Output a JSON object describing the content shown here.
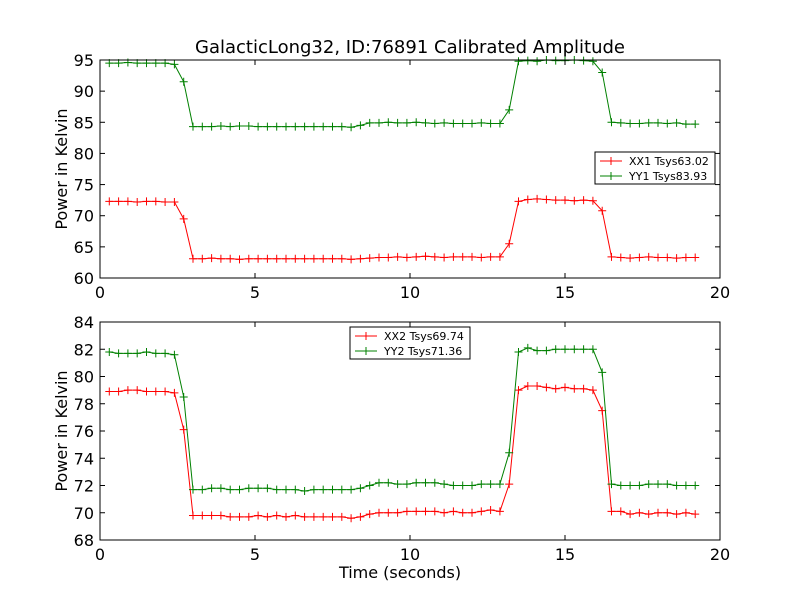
{
  "chart_data": [
    {
      "type": "line",
      "title": "GalacticLong32, ID:76891 Calibrated Amplitude",
      "xlabel": "",
      "ylabel": "Power in Kelvin",
      "xlim": [
        0,
        20
      ],
      "ylim": [
        60,
        95
      ],
      "xticks": [
        "0",
        "5",
        "10",
        "15",
        "20"
      ],
      "yticks": [
        "60",
        "65",
        "70",
        "75",
        "80",
        "85",
        "90",
        "95"
      ],
      "grid": false,
      "legend_position": "center-right",
      "x": [
        0.3,
        0.6,
        0.9,
        1.2,
        1.5,
        1.8,
        2.1,
        2.4,
        2.7,
        3.0,
        3.3,
        3.6,
        3.9,
        4.2,
        4.5,
        4.8,
        5.1,
        5.4,
        5.7,
        6.0,
        6.3,
        6.6,
        6.9,
        7.2,
        7.5,
        7.8,
        8.1,
        8.4,
        8.7,
        9.0,
        9.3,
        9.6,
        9.9,
        10.2,
        10.5,
        10.8,
        11.1,
        11.4,
        11.7,
        12.0,
        12.3,
        12.6,
        12.9,
        13.2,
        13.5,
        13.8,
        14.1,
        14.4,
        14.7,
        15.0,
        15.3,
        15.6,
        15.9,
        16.2,
        16.5,
        16.8,
        17.1,
        17.4,
        17.7,
        18.0,
        18.3,
        18.6,
        18.9,
        19.2
      ],
      "series": [
        {
          "name": "XX1 Tsys63.02",
          "color": "#ff0000",
          "values": [
            72.3,
            72.3,
            72.3,
            72.2,
            72.3,
            72.3,
            72.2,
            72.2,
            69.5,
            63.1,
            63.1,
            63.2,
            63.1,
            63.1,
            63.0,
            63.1,
            63.1,
            63.1,
            63.1,
            63.1,
            63.1,
            63.1,
            63.1,
            63.1,
            63.1,
            63.1,
            63.0,
            63.1,
            63.2,
            63.3,
            63.3,
            63.4,
            63.3,
            63.4,
            63.5,
            63.4,
            63.3,
            63.4,
            63.4,
            63.4,
            63.3,
            63.4,
            63.4,
            65.5,
            72.3,
            72.6,
            72.7,
            72.6,
            72.5,
            72.5,
            72.4,
            72.5,
            72.4,
            70.8,
            63.4,
            63.3,
            63.2,
            63.3,
            63.4,
            63.3,
            63.3,
            63.2,
            63.3,
            63.3
          ]
        },
        {
          "name": "YY1 Tsys83.93",
          "color": "#008000",
          "values": [
            94.5,
            94.5,
            94.6,
            94.5,
            94.5,
            94.5,
            94.5,
            94.3,
            91.5,
            84.3,
            84.3,
            84.3,
            84.4,
            84.3,
            84.4,
            84.4,
            84.3,
            84.3,
            84.3,
            84.3,
            84.3,
            84.3,
            84.3,
            84.3,
            84.3,
            84.3,
            84.2,
            84.5,
            84.9,
            84.9,
            85.0,
            84.9,
            84.9,
            85.0,
            84.9,
            84.8,
            84.9,
            84.8,
            84.8,
            84.8,
            84.9,
            84.8,
            84.8,
            87.0,
            94.8,
            94.9,
            94.8,
            95.0,
            94.9,
            94.9,
            95.0,
            94.9,
            94.8,
            93.0,
            85.0,
            84.9,
            84.8,
            84.8,
            84.9,
            84.9,
            84.8,
            84.9,
            84.7,
            84.7
          ]
        }
      ]
    },
    {
      "type": "line",
      "title": "",
      "xlabel": "Time (seconds)",
      "ylabel": "Power in Kelvin",
      "xlim": [
        0,
        20
      ],
      "ylim": [
        68,
        84
      ],
      "xticks": [
        "0",
        "5",
        "10",
        "15",
        "20"
      ],
      "yticks": [
        "68",
        "70",
        "72",
        "74",
        "76",
        "78",
        "80",
        "82",
        "84"
      ],
      "grid": false,
      "legend_position": "top-center",
      "x": [
        0.3,
        0.6,
        0.9,
        1.2,
        1.5,
        1.8,
        2.1,
        2.4,
        2.7,
        3.0,
        3.3,
        3.6,
        3.9,
        4.2,
        4.5,
        4.8,
        5.1,
        5.4,
        5.7,
        6.0,
        6.3,
        6.6,
        6.9,
        7.2,
        7.5,
        7.8,
        8.1,
        8.4,
        8.7,
        9.0,
        9.3,
        9.6,
        9.9,
        10.2,
        10.5,
        10.8,
        11.1,
        11.4,
        11.7,
        12.0,
        12.3,
        12.6,
        12.9,
        13.2,
        13.5,
        13.8,
        14.1,
        14.4,
        14.7,
        15.0,
        15.3,
        15.6,
        15.9,
        16.2,
        16.5,
        16.8,
        17.1,
        17.4,
        17.7,
        18.0,
        18.3,
        18.6,
        18.9,
        19.2
      ],
      "series": [
        {
          "name": "XX2 Tsys69.74",
          "color": "#ff0000",
          "values": [
            78.9,
            78.9,
            79.0,
            79.0,
            78.9,
            78.9,
            78.9,
            78.8,
            76.1,
            69.8,
            69.8,
            69.8,
            69.8,
            69.7,
            69.7,
            69.7,
            69.8,
            69.7,
            69.8,
            69.7,
            69.8,
            69.7,
            69.7,
            69.7,
            69.7,
            69.7,
            69.6,
            69.7,
            69.9,
            70.0,
            70.0,
            70.0,
            70.1,
            70.1,
            70.1,
            70.1,
            70.0,
            70.1,
            70.0,
            70.0,
            70.1,
            70.2,
            70.1,
            72.1,
            79.0,
            79.3,
            79.3,
            79.2,
            79.1,
            79.2,
            79.1,
            79.1,
            79.0,
            77.5,
            70.1,
            70.1,
            69.9,
            70.0,
            69.9,
            70.0,
            70.0,
            69.9,
            70.0,
            69.9
          ]
        },
        {
          "name": "YY2 Tsys71.36",
          "color": "#008000",
          "values": [
            81.8,
            81.7,
            81.7,
            81.7,
            81.8,
            81.7,
            81.7,
            81.6,
            78.5,
            71.7,
            71.7,
            71.8,
            71.8,
            71.7,
            71.7,
            71.8,
            71.8,
            71.8,
            71.7,
            71.7,
            71.7,
            71.6,
            71.7,
            71.7,
            71.7,
            71.7,
            71.7,
            71.8,
            72.0,
            72.2,
            72.2,
            72.1,
            72.1,
            72.2,
            72.2,
            72.2,
            72.1,
            72.0,
            72.0,
            72.0,
            72.1,
            72.1,
            72.1,
            74.4,
            81.8,
            82.1,
            81.9,
            81.9,
            82.0,
            82.0,
            82.0,
            82.0,
            82.0,
            80.3,
            72.1,
            72.0,
            72.0,
            72.0,
            72.1,
            72.1,
            72.1,
            72.0,
            72.0,
            72.0
          ]
        }
      ]
    }
  ]
}
